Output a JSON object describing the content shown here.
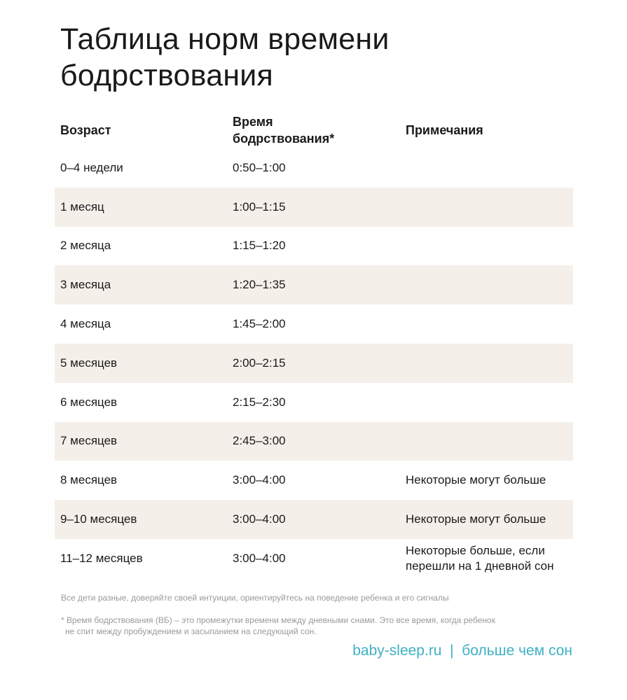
{
  "title": "Таблица норм времени бодрствования",
  "headers": {
    "age": "Возраст",
    "time": "Время бодрствования*",
    "notes": "Примечания"
  },
  "rows": [
    {
      "age": "0–4 недели",
      "time": "0:50–1:00",
      "note": ""
    },
    {
      "age": "1 месяц",
      "time": "1:00–1:15",
      "note": ""
    },
    {
      "age": "2 месяца",
      "time": "1:15–1:20",
      "note": ""
    },
    {
      "age": "3 месяца",
      "time": "1:20–1:35",
      "note": ""
    },
    {
      "age": "4 месяца",
      "time": "1:45–2:00",
      "note": ""
    },
    {
      "age": "5 месяцев",
      "time": "2:00–2:15",
      "note": ""
    },
    {
      "age": "6 месяцев",
      "time": "2:15–2:30",
      "note": ""
    },
    {
      "age": "7 месяцев",
      "time": "2:45–3:00",
      "note": ""
    },
    {
      "age": "8 месяцев",
      "time": "3:00–4:00",
      "note": "Некоторые могут больше"
    },
    {
      "age": "9–10 месяцев",
      "time": "3:00–4:00",
      "note": "Некоторые могут больше"
    },
    {
      "age": "11–12 месяцев",
      "time": "3:00–4:00",
      "note": "Некоторые больше, если перешли на 1 дневной сон"
    }
  ],
  "notes": {
    "intuition": "Все дети разные, доверяйте своей интуиции, ориентируйтесь на поведение ребенка и его сигналы",
    "footnote_1": "* Время бодрствования (ВБ) – это промежутки времени между дневными снами. Это все время, когда ребенок",
    "footnote_2": "не спит между пробуждением и засыпанием на следующий сон."
  },
  "footer": "baby-sleep.ru  |  больше чем сон",
  "colors": {
    "row_alt": "#f5efea",
    "accent": "#3fb0c4"
  }
}
